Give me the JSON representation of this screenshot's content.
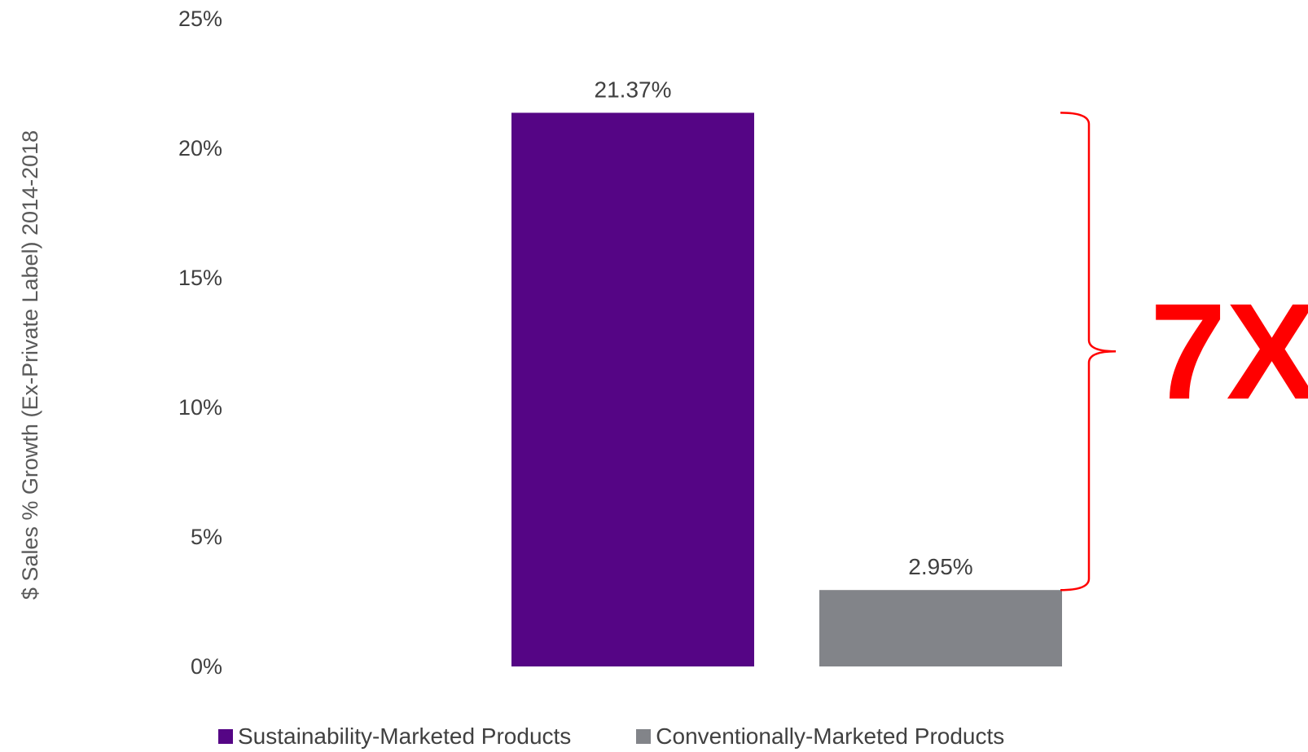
{
  "chart_data": {
    "type": "bar",
    "ylabel": "$ Sales % Growth (Ex-Private Label) 2014-2018",
    "ylim": [
      0,
      25
    ],
    "yticks": [
      "0%",
      "5%",
      "10%",
      "15%",
      "20%",
      "25%"
    ],
    "grid": false,
    "legend_position": "bottom",
    "series": [
      {
        "name": "Sustainability-Marketed Products",
        "value": 21.37,
        "label": "21.37%",
        "color": "#550585"
      },
      {
        "name": "Conventionally-Marketed Products",
        "value": 2.95,
        "label": "2.95%",
        "color": "#828489"
      }
    ],
    "annotation": {
      "text": "7X",
      "color": "#ff0000"
    }
  }
}
